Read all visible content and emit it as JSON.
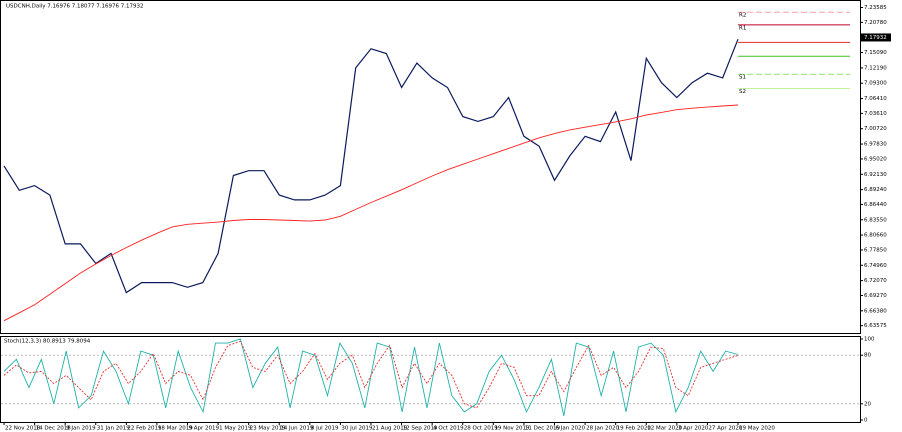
{
  "chart_data": [
    {
      "type": "line",
      "title": "USDCNH,Daily  7.16976 7.18077 7.16976 7.17932",
      "categories": [
        "22 Nov 2018",
        null,
        "14 Dec 2018",
        null,
        "9 Jan 2019",
        null,
        "31 Jan 2019",
        null,
        "22 Feb 2019",
        null,
        "18 Mar 2019",
        null,
        "9 Apr 2019",
        null,
        "1 May 2019",
        null,
        "23 May 2019",
        null,
        "14 Jun 2019",
        null,
        "8 Jul 2019",
        null,
        "30 Jul 2019",
        null,
        "21 Aug 2019",
        null,
        "12 Sep 2019",
        null,
        "4 Oct 2019",
        null,
        "28 Oct 2019",
        null,
        "19 Nov 2019",
        null,
        "11 Dec 2019",
        null,
        "6 Jan 2020",
        null,
        "28 Jan 2020",
        null,
        "19 Feb 2020",
        null,
        "12 Mar 2020",
        null,
        "3 Apr 2020",
        null,
        "27 Apr 2020",
        null,
        "19 May 2020"
      ],
      "series": [
        {
          "color": "#0a1a5c",
          "values": [
            6.937,
            6.891,
            6.9,
            6.882,
            6.79,
            6.79,
            6.753,
            6.772,
            6.698,
            6.717,
            6.717,
            6.717,
            6.708,
            6.717,
            6.772,
            6.919,
            6.928,
            6.928,
            6.882,
            6.873,
            6.873,
            6.882,
            6.9,
            7.122,
            7.158,
            7.149,
            7.085,
            7.131,
            7.103,
            7.085,
            7.03,
            7.021,
            7.03,
            7.066,
            6.993,
            6.974,
            6.91,
            6.956,
            6.993,
            6.983,
            7.039,
            6.947,
            7.14,
            7.094,
            7.066,
            7.094,
            7.112,
            7.103,
            7.176
          ]
        },
        {
          "color": "#ff2020",
          "values": [
            6.645,
            6.66,
            6.675,
            6.695,
            6.715,
            6.735,
            6.752,
            6.768,
            6.783,
            6.797,
            6.81,
            6.822,
            6.827,
            6.829,
            6.831,
            6.834,
            6.836,
            6.836,
            6.835,
            6.834,
            6.833,
            6.835,
            6.842,
            6.855,
            6.868,
            6.88,
            6.892,
            6.905,
            6.918,
            6.93,
            6.94,
            6.95,
            6.96,
            6.97,
            6.98,
            6.99,
            6.998,
            7.005,
            7.01,
            7.015,
            7.02,
            7.026,
            7.033,
            7.038,
            7.043,
            7.046,
            7.048,
            7.05,
            7.052
          ]
        }
      ],
      "levels": [
        {
          "label": "R2",
          "value": 7.227,
          "color": "#f4a0b0",
          "dashed": true
        },
        {
          "label": "R1",
          "value": 7.203,
          "color": "#c00020",
          "dashed": false
        },
        {
          "value": 7.17,
          "color": "#e03030",
          "dashed": false
        },
        {
          "value": 7.144,
          "color": "#40c020",
          "dashed": false
        },
        {
          "label": "S1",
          "value": 7.11,
          "color": "#90e070",
          "dashed": true
        },
        {
          "label": "S2",
          "value": 7.083,
          "color": "#c0f0a0",
          "dashed": false
        }
      ],
      "last_price": 7.17932,
      "ylim": [
        6.62,
        7.25
      ],
      "yticks": [
        7.23585,
        {
          "value": 7.2078,
          "label": "7.20780"
        },
        {
          "value": 7.1509,
          "label": "7.15090"
        },
        {
          "value": 7.1219,
          "label": "7.12190"
        },
        {
          "value": 7.093,
          "label": "7.09300"
        },
        {
          "value": 7.0641,
          "label": "7.06410"
        },
        {
          "value": 7.0361,
          "label": "7.03610"
        },
        {
          "value": 7.0072,
          "label": "7.00720"
        },
        {
          "value": 6.9783,
          "label": "6.97830"
        },
        {
          "value": 6.9502,
          "label": "6.95020"
        },
        {
          "value": 6.9213,
          "label": "6.92130"
        },
        {
          "value": 6.8924,
          "label": "6.89240"
        },
        {
          "value": 6.8644,
          "label": "6.86440"
        },
        {
          "value": 6.8355,
          "label": "6.83550"
        },
        {
          "value": 6.8066,
          "label": "6.80660"
        },
        {
          "value": 6.7785,
          "label": "6.77850"
        },
        {
          "value": 6.7496,
          "label": "6.74960"
        },
        {
          "value": 6.7207,
          "label": "6.72070"
        },
        {
          "value": 6.6927,
          "label": "6.69270"
        },
        {
          "value": 6.6638,
          "label": "6.66380"
        },
        6.63575
      ]
    },
    {
      "type": "oscillator",
      "title": "Stoch(12,3,3) 80.8913 79.8094",
      "series": [
        {
          "color": "#20b2aa",
          "dashed": false,
          "values": [
            60,
            75,
            40,
            75,
            20,
            85,
            15,
            30,
            85,
            60,
            20,
            85,
            80,
            15,
            85,
            40,
            10,
            95,
            95,
            100,
            40,
            70,
            90,
            15,
            85,
            80,
            30,
            95,
            70,
            15,
            95,
            90,
            10,
            90,
            15,
            95,
            30,
            10,
            20,
            60,
            80,
            50,
            10,
            40,
            75,
            5,
            95,
            90,
            30,
            85,
            10,
            90,
            95,
            80,
            10,
            40,
            85,
            60,
            85,
            80.8913
          ]
        },
        {
          "color": "#e03030",
          "dashed": true,
          "values": [
            55,
            68,
            58,
            60,
            45,
            55,
            40,
            25,
            60,
            70,
            45,
            60,
            82,
            45,
            60,
            55,
            25,
            65,
            92,
            97,
            65,
            60,
            80,
            45,
            60,
            82,
            50,
            70,
            80,
            40,
            70,
            92,
            40,
            70,
            45,
            70,
            55,
            20,
            15,
            40,
            70,
            65,
            30,
            30,
            60,
            35,
            65,
            92,
            55,
            65,
            40,
            60,
            90,
            88,
            40,
            30,
            65,
            70,
            75,
            79.8094
          ]
        }
      ],
      "ylim": [
        0,
        100
      ],
      "yticks": [
        100,
        80,
        20,
        0
      ]
    }
  ]
}
